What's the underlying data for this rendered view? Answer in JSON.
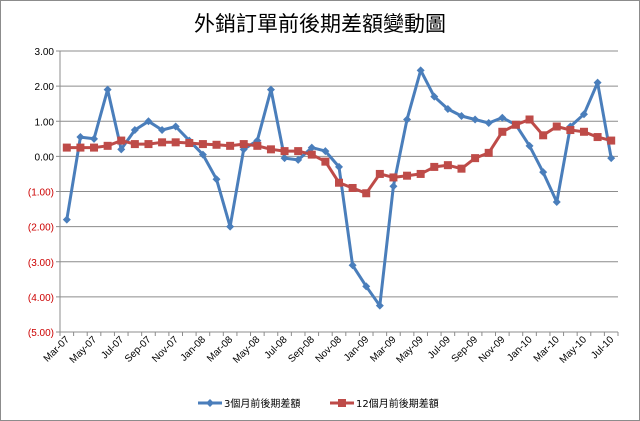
{
  "chart_data": {
    "type": "line",
    "title": "外銷訂單前後期差額變動圖",
    "xlabel": "",
    "ylabel": "",
    "ylim": [
      -5,
      3
    ],
    "grid": true,
    "legend_placement": "bottom",
    "y_tick_labels": [
      "3.00",
      "2.00",
      "1.00",
      "0.00",
      "(1.00)",
      "(2.00)",
      "(3.00)",
      "(4.00)",
      "(5.00)"
    ],
    "x_tick_labels": [
      "Mar-07",
      "May-07",
      "Jul-07",
      "Sep-07",
      "Nov-07",
      "Jan-08",
      "Mar-08",
      "May-08",
      "Jul-08",
      "Sep-08",
      "Nov-08",
      "Jan-09",
      "Mar-09",
      "May-09",
      "Jul-09",
      "Sep-09",
      "Nov-09",
      "Jan-10",
      "Mar-10",
      "May-10",
      "Jul-10"
    ],
    "categories": [
      "Mar-07",
      "Apr-07",
      "May-07",
      "Jun-07",
      "Jul-07",
      "Aug-07",
      "Sep-07",
      "Oct-07",
      "Nov-07",
      "Dec-07",
      "Jan-08",
      "Feb-08",
      "Mar-08",
      "Apr-08",
      "May-08",
      "Jun-08",
      "Jul-08",
      "Aug-08",
      "Sep-08",
      "Oct-08",
      "Nov-08",
      "Dec-08",
      "Jan-09",
      "Feb-09",
      "Mar-09",
      "Apr-09",
      "May-09",
      "Jun-09",
      "Jul-09",
      "Aug-09",
      "Sep-09",
      "Oct-09",
      "Nov-09",
      "Dec-09",
      "Jan-10",
      "Feb-10",
      "Mar-10",
      "Apr-10",
      "May-10",
      "Jun-10",
      "Jul-10"
    ],
    "series": [
      {
        "name": "3個月前後期差額",
        "color": "#4a7ebb",
        "marker": "diamond",
        "values": [
          -1.8,
          0.55,
          0.5,
          1.9,
          0.2,
          0.75,
          1.0,
          0.75,
          0.85,
          0.45,
          0.05,
          -0.65,
          -2.0,
          0.2,
          0.45,
          1.9,
          -0.05,
          -0.1,
          0.25,
          0.15,
          -0.3,
          -3.1,
          -3.7,
          -4.25,
          -0.85,
          1.05,
          2.45,
          1.7,
          1.35,
          1.15,
          1.05,
          0.95,
          1.1,
          0.9,
          0.3,
          -0.45,
          -1.3,
          0.85,
          1.2,
          2.1,
          -0.05
        ]
      },
      {
        "name": "12個月前後期差額",
        "color": "#be4b48",
        "marker": "square",
        "values": [
          0.25,
          0.25,
          0.25,
          0.3,
          0.45,
          0.35,
          0.35,
          0.4,
          0.4,
          0.38,
          0.35,
          0.33,
          0.3,
          0.35,
          0.3,
          0.2,
          0.15,
          0.15,
          0.05,
          -0.15,
          -0.75,
          -0.9,
          -1.05,
          -0.5,
          -0.6,
          -0.55,
          -0.5,
          -0.3,
          -0.25,
          -0.35,
          -0.05,
          0.1,
          0.7,
          0.9,
          1.05,
          0.6,
          0.85,
          0.75,
          0.7,
          0.55,
          0.45
        ]
      }
    ]
  },
  "colors": {
    "negative_tick": "#cc0000",
    "positive_tick": "#000000",
    "gridline": "#8c8c8c",
    "axis": "#8c8c8c"
  }
}
